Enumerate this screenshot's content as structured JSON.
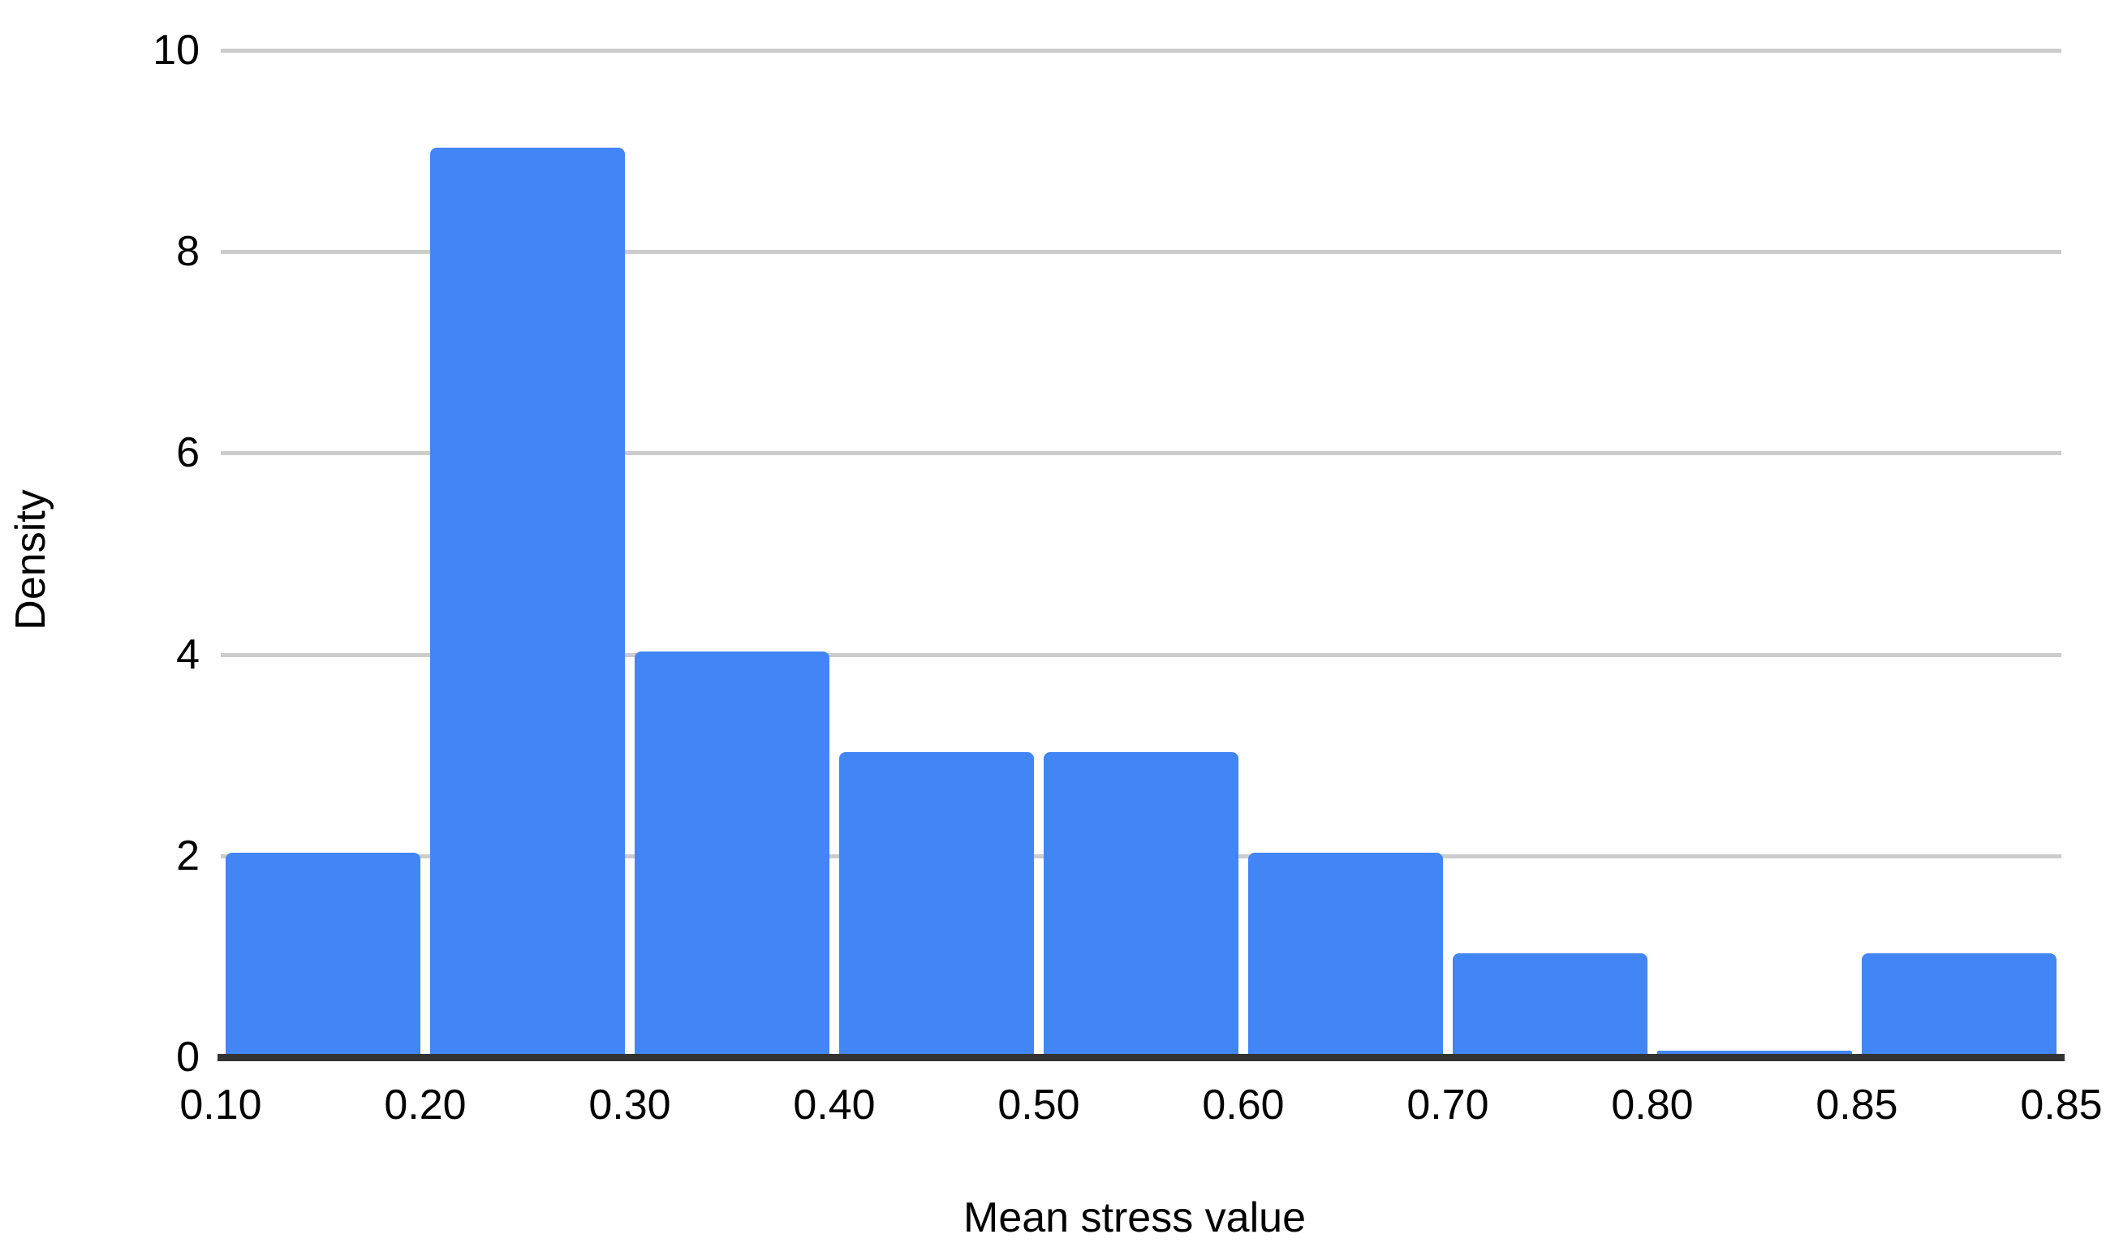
{
  "chart_data": {
    "type": "bar",
    "subtype": "histogram",
    "title": "",
    "xlabel": "Mean stress value",
    "ylabel": "Density",
    "x_tick_labels": [
      "0.10",
      "0.20",
      "0.30",
      "0.40",
      "0.50",
      "0.60",
      "0.70",
      "0.80",
      "0.85",
      "0.85"
    ],
    "values": [
      2,
      9,
      4,
      3,
      3,
      2,
      1,
      0,
      1
    ],
    "bins": [
      {
        "range": "0.10-0.20",
        "density": 2
      },
      {
        "range": "0.20-0.30",
        "density": 9
      },
      {
        "range": "0.30-0.40",
        "density": 4
      },
      {
        "range": "0.40-0.50",
        "density": 3
      },
      {
        "range": "0.50-0.60",
        "density": 3
      },
      {
        "range": "0.60-0.70",
        "density": 2
      },
      {
        "range": "0.70-0.80",
        "density": 1
      },
      {
        "range": "0.80-0.85",
        "density": 0
      },
      {
        "range": "0.85-0.85",
        "density": 1
      }
    ],
    "y_ticks": [
      0,
      2,
      4,
      6,
      8,
      10
    ],
    "ylim": [
      0,
      10
    ],
    "grid": true,
    "legend_position": "none",
    "colors": {
      "bar": "#4285f4",
      "gridline": "#cccccc",
      "axis_line": "#333333",
      "text": "#000000",
      "background": "#ffffff"
    }
  }
}
